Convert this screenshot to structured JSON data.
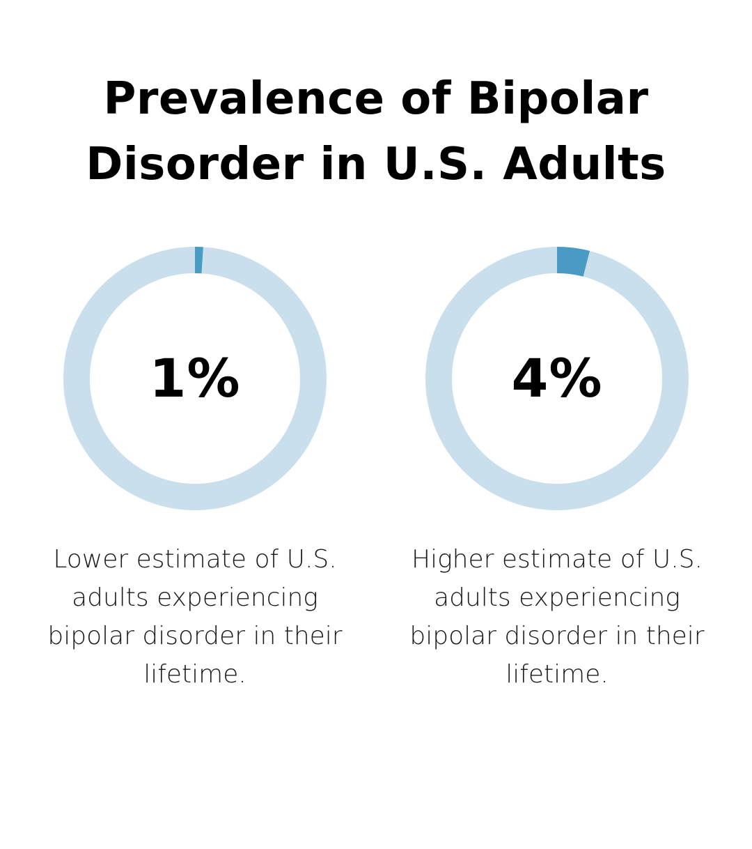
{
  "title_lines": [
    "Prevalence of Bipolar",
    "Disorder in U.S. Adults"
  ],
  "colors": {
    "track": "#c9e0ec",
    "fill": "#4a9bc4",
    "text": "#000000"
  },
  "chart_data": [
    {
      "type": "pie",
      "title": "",
      "value": 1,
      "max": 100,
      "value_label": "1%",
      "caption": "Lower estimate of U.S. adults experiencing bipolar disorder in their lifetime."
    },
    {
      "type": "pie",
      "title": "",
      "value": 4,
      "max": 100,
      "value_label": "4%",
      "caption": "Higher estimate of U.S. adults experiencing bipolar disorder in their lifetime."
    }
  ]
}
